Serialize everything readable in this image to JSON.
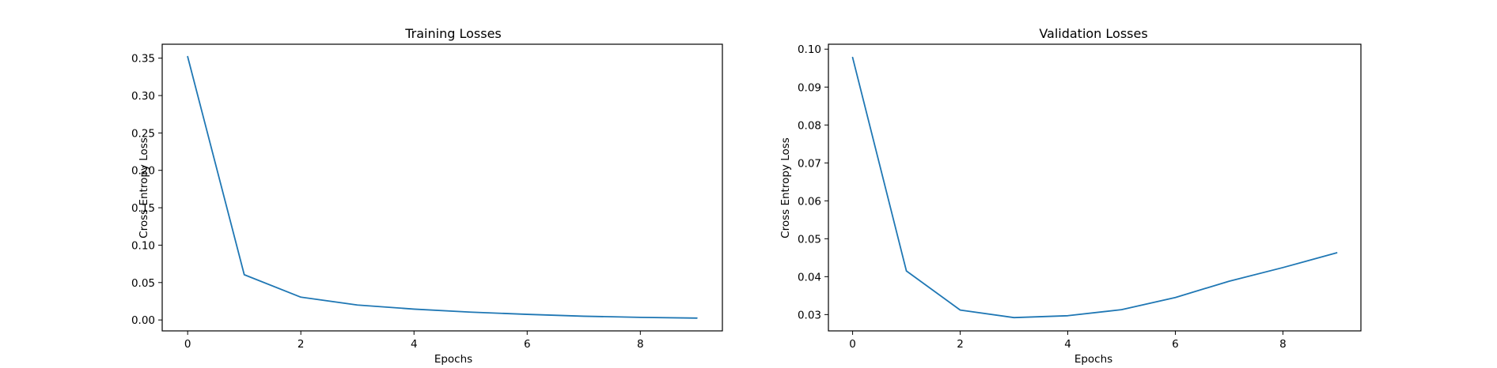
{
  "chart_data": [
    {
      "type": "line",
      "title": "Training Losses",
      "xlabel": "Epochs",
      "ylabel": "Cross Entropy Loss",
      "x": [
        0,
        1,
        2,
        3,
        4,
        5,
        6,
        7,
        8,
        9
      ],
      "series": [
        {
          "values": [
            0.352,
            0.0605,
            0.0305,
            0.02,
            0.0145,
            0.0105,
            0.0075,
            0.005,
            0.0035,
            0.0025
          ]
        }
      ],
      "xlim": [
        -0.45,
        9.45
      ],
      "ylim": [
        -0.0146,
        0.3686
      ],
      "xticks": [
        0,
        2,
        4,
        6,
        8
      ],
      "xtick_labels": [
        "0",
        "2",
        "4",
        "6",
        "8"
      ],
      "yticks": [
        0.0,
        0.05,
        0.1,
        0.15,
        0.2,
        0.25,
        0.3,
        0.35
      ],
      "ytick_labels": [
        "0.00",
        "0.05",
        "0.10",
        "0.15",
        "0.20",
        "0.25",
        "0.30",
        "0.35"
      ],
      "line_color": "#1f77b4",
      "grid": false,
      "legend": "none"
    },
    {
      "type": "line",
      "title": "Validation Losses",
      "xlabel": "Epochs",
      "ylabel": "Cross Entropy Loss",
      "x": [
        0,
        1,
        2,
        3,
        4,
        5,
        6,
        7,
        8,
        9
      ],
      "series": [
        {
          "values": [
            0.0978,
            0.0415,
            0.0312,
            0.0292,
            0.0297,
            0.0313,
            0.0345,
            0.0388,
            0.0424,
            0.0463
          ]
        }
      ],
      "xlim": [
        -0.45,
        9.45
      ],
      "ylim": [
        0.0257,
        0.1013
      ],
      "xticks": [
        0,
        2,
        4,
        6,
        8
      ],
      "xtick_labels": [
        "0",
        "2",
        "4",
        "6",
        "8"
      ],
      "yticks": [
        0.03,
        0.04,
        0.05,
        0.06,
        0.07,
        0.08,
        0.09,
        0.1
      ],
      "ytick_labels": [
        "0.03",
        "0.04",
        "0.05",
        "0.06",
        "0.07",
        "0.08",
        "0.09",
        "0.10"
      ],
      "line_color": "#1f77b4",
      "grid": false,
      "legend": "none"
    }
  ]
}
